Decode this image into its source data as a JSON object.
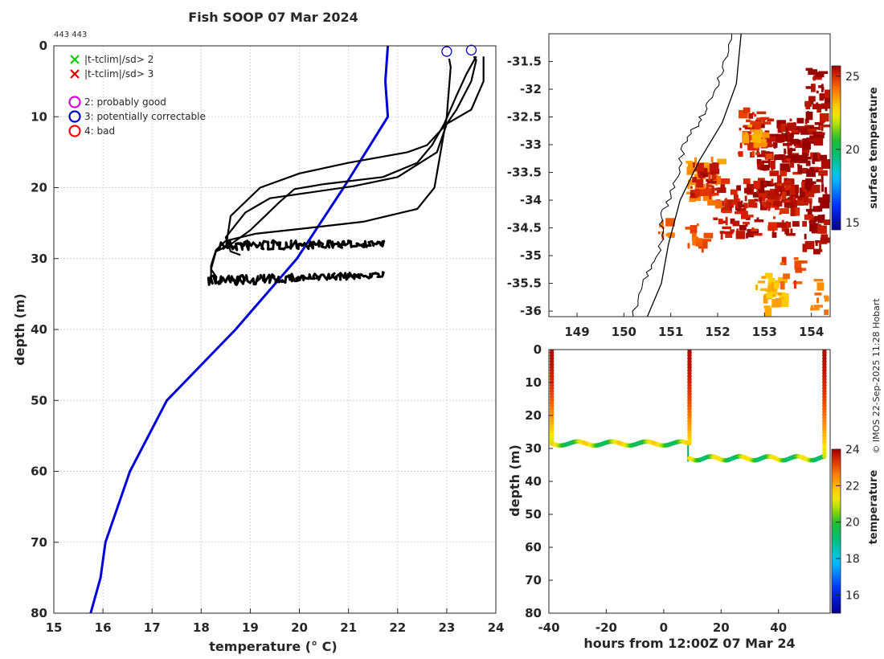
{
  "figure_title": "Fish SOOP 07 Mar 2024",
  "id_label": "443 443",
  "credit": "© IMOS 22-Sep-2025 11:28 Hobart",
  "colors": {
    "profile": "#000000",
    "climatology": "#0000dd",
    "flag_green": "#00cc00",
    "flag_red": "#dd0000",
    "flag_magenta": "#dd00dd",
    "flag_blue": "#0000cc",
    "flag_bad": "#ff0000",
    "grid": "#d6d6d6",
    "coast": "#000000"
  },
  "legend": [
    {
      "marker": "cross",
      "color": "flag_green",
      "label": "|t-tclim|/sd> 2"
    },
    {
      "marker": "cross",
      "color": "flag_red",
      "label": "|t-tclim|/sd> 3"
    },
    {
      "marker": "circle",
      "color": "flag_magenta",
      "label": "2: probably good"
    },
    {
      "marker": "circle",
      "color": "flag_blue",
      "label": "3: potentially correctable"
    },
    {
      "marker": "circle",
      "color": "flag_bad",
      "label": "4: bad"
    }
  ],
  "chart_data": [
    {
      "id": "profile",
      "type": "line",
      "xlabel": "temperature (° C)",
      "ylabel": "depth (m)",
      "xlim": [
        15,
        24
      ],
      "ylim": [
        0,
        80
      ],
      "y_reversed": true,
      "xticks": [
        "15",
        "16",
        "17",
        "18",
        "19",
        "20",
        "21",
        "22",
        "23",
        "24"
      ],
      "yticks": [
        "0",
        "10",
        "20",
        "30",
        "40",
        "50",
        "60",
        "70",
        "80"
      ],
      "grid": true,
      "series": [
        {
          "name": "climatology",
          "color": "climatology",
          "points": [
            [
              21.8,
              0
            ],
            [
              21.75,
              5
            ],
            [
              21.8,
              10
            ],
            [
              20.9,
              20
            ],
            [
              19.95,
              30
            ],
            [
              18.7,
              40
            ],
            [
              17.3,
              50
            ],
            [
              16.55,
              60
            ],
            [
              16.05,
              70
            ],
            [
              15.95,
              75
            ],
            [
              15.75,
              80
            ]
          ]
        },
        {
          "name": "profile 1",
          "color": "profile",
          "points": [
            [
              23.05,
              1.8
            ],
            [
              23.08,
              3
            ],
            [
              23.0,
              10
            ],
            [
              22.75,
              20
            ],
            [
              22.4,
              23
            ],
            [
              21.3,
              24.8
            ],
            [
              20.3,
              25.6
            ],
            [
              19.1,
              26.5
            ],
            [
              18.5,
              27.5
            ],
            [
              18.3,
              28.8
            ],
            [
              18.2,
              31
            ],
            [
              18.2,
              33
            ],
            [
              18.15,
              33.8
            ]
          ]
        },
        {
          "name": "profile 2",
          "color": "profile",
          "points": [
            [
              23.55,
              1.5
            ],
            [
              23.6,
              2
            ],
            [
              23.5,
              5
            ],
            [
              23.2,
              9
            ],
            [
              23.0,
              11
            ],
            [
              22.8,
              15
            ],
            [
              22.0,
              18.5
            ],
            [
              21.1,
              19.8
            ],
            [
              19.4,
              21.5
            ],
            [
              18.9,
              23.5
            ],
            [
              18.5,
              27
            ],
            [
              18.6,
              29
            ],
            [
              18.8,
              29.5
            ]
          ]
        },
        {
          "name": "profile 3",
          "color": "profile",
          "points": [
            [
              23.75,
              1.5
            ],
            [
              23.75,
              5
            ],
            [
              23.5,
              9
            ],
            [
              23.0,
              11
            ],
            [
              22.6,
              14
            ],
            [
              22.2,
              15
            ],
            [
              21.0,
              16.5
            ],
            [
              20.0,
              18
            ],
            [
              19.2,
              20
            ],
            [
              18.6,
              24
            ],
            [
              18.5,
              28.5
            ]
          ]
        },
        {
          "name": "profile 4",
          "color": "profile",
          "points": [
            [
              23.6,
              1.5
            ],
            [
              23.4,
              4
            ],
            [
              23.2,
              7
            ],
            [
              22.95,
              11
            ],
            [
              22.7,
              14
            ],
            [
              22.4,
              16.5
            ],
            [
              21.7,
              18.5
            ],
            [
              20.5,
              19.5
            ],
            [
              19.9,
              20.2
            ],
            [
              19.6,
              22
            ],
            [
              19.3,
              24
            ],
            [
              19.0,
              26
            ],
            [
              18.6,
              28
            ],
            [
              18.3,
              29
            ],
            [
              18.2,
              31.5
            ],
            [
              18.3,
              32.5
            ]
          ]
        },
        {
          "name": "band 28m",
          "color": "profile",
          "style": "band",
          "points": [
            [
              18.4,
              28.2
            ],
            [
              21.75,
              27.9
            ]
          ]
        },
        {
          "name": "band 33m",
          "color": "profile",
          "style": "band",
          "points": [
            [
              18.15,
              33.2
            ],
            [
              21.7,
              32.3
            ]
          ]
        }
      ],
      "markers": [
        {
          "type": "circle",
          "color": "flag_blue",
          "x": 23.0,
          "y": 0.8
        },
        {
          "type": "circle",
          "color": "flag_blue",
          "x": 23.5,
          "y": 0.6
        }
      ]
    },
    {
      "id": "map",
      "type": "heatmap",
      "xlim": [
        148.4,
        154.4
      ],
      "ylim": [
        -36.1,
        -31.0
      ],
      "xticks": [
        "149",
        "150",
        "151",
        "152",
        "153",
        "154"
      ],
      "yticks": [
        "-31.5",
        "-32",
        "-32.5",
        "-33",
        "-33.5",
        "-34",
        "-34.5",
        "-35",
        "-35.5",
        "-36"
      ],
      "colorbar": {
        "label": "surface temperature",
        "range": [
          14.5,
          25.7
        ],
        "ticks": [
          "15",
          "20",
          "25"
        ]
      },
      "coast": [
        [
          152.3,
          -31.0
        ],
        [
          152.1,
          -31.6
        ],
        [
          151.95,
          -32.0
        ],
        [
          151.75,
          -32.3
        ],
        [
          151.6,
          -32.6
        ],
        [
          151.25,
          -33.0
        ],
        [
          151.2,
          -33.5
        ],
        [
          151.0,
          -33.9
        ],
        [
          150.8,
          -34.3
        ],
        [
          150.85,
          -34.7
        ],
        [
          150.65,
          -35.1
        ],
        [
          150.4,
          -35.5
        ],
        [
          150.2,
          -36.1
        ]
      ],
      "track": [
        [
          152.5,
          -31.0
        ],
        [
          152.4,
          -31.9
        ],
        [
          152.1,
          -32.6
        ],
        [
          151.6,
          -33.3
        ],
        [
          151.2,
          -34.0
        ],
        [
          150.95,
          -34.8
        ],
        [
          150.8,
          -35.5
        ],
        [
          150.5,
          -36.1
        ]
      ],
      "patches": [
        {
          "lon": [
            152.8,
            153.9
          ],
          "lat": [
            -34.0,
            -32.5
          ],
          "value": 25.5,
          "count": 150
        },
        {
          "lon": [
            153.8,
            154.3
          ],
          "lat": [
            -35.0,
            -31.6
          ],
          "value": 25.6,
          "count": 110
        },
        {
          "lon": [
            151.9,
            153.6
          ],
          "lat": [
            -34.6,
            -33.6
          ],
          "value": 25.3,
          "count": 120
        },
        {
          "lon": [
            151.3,
            152.0
          ],
          "lat": [
            -34.0,
            -33.2
          ],
          "value": 23.8,
          "count": 40
        },
        {
          "lon": [
            151.4,
            151.9
          ],
          "lat": [
            -33.9,
            -33.3
          ],
          "value": 25.2,
          "count": 40
        },
        {
          "lon": [
            152.4,
            153.1
          ],
          "lat": [
            -33.2,
            -32.3
          ],
          "value": 25.0,
          "count": 40
        },
        {
          "lon": [
            152.5,
            153.0
          ],
          "lat": [
            -33.0,
            -32.6
          ],
          "value": 23.5,
          "count": 16
        },
        {
          "lon": [
            150.7,
            150.95
          ],
          "lat": [
            -34.6,
            -34.2
          ],
          "value": 24.2,
          "count": 8
        },
        {
          "lon": [
            151.3,
            151.7
          ],
          "lat": [
            -34.8,
            -34.4
          ],
          "value": 24.4,
          "count": 12
        },
        {
          "lon": [
            152.8,
            153.4
          ],
          "lat": [
            -36.0,
            -35.3
          ],
          "value": 23.2,
          "count": 40
        },
        {
          "lon": [
            153.3,
            153.8
          ],
          "lat": [
            -35.5,
            -35.0
          ],
          "value": 24.6,
          "count": 12
        },
        {
          "lon": [
            153.9,
            154.3
          ],
          "lat": [
            -36.0,
            -35.4
          ],
          "value": 24.0,
          "count": 10
        }
      ]
    },
    {
      "id": "time-depth",
      "type": "scatter",
      "xlabel": "hours from 12:00Z 07 Mar 24",
      "ylabel": "depth (m)",
      "xlim": [
        -40,
        58
      ],
      "ylim": [
        0,
        80
      ],
      "y_reversed": true,
      "xticks": [
        "-40",
        "-20",
        "0",
        "20",
        "40"
      ],
      "yticks": [
        "0",
        "10",
        "20",
        "30",
        "40",
        "50",
        "60",
        "70",
        "80"
      ],
      "colorbar": {
        "label": "temperature",
        "range": [
          15,
          24
        ],
        "ticks": [
          "16",
          "18",
          "20",
          "22",
          "24"
        ]
      },
      "casts": [
        {
          "hour": -39,
          "temp_top": 23.8,
          "temp_bottom": 21.0,
          "bottom": 28.5
        },
        {
          "hour": 9,
          "temp_top": 23.8,
          "temp_bottom": 21.5,
          "bottom": 28.5
        },
        {
          "hour": 56,
          "temp_top": 23.8,
          "temp_bottom": 21.0,
          "bottom": 32.5
        }
      ],
      "tows": [
        {
          "hours": [
            -39,
            9
          ],
          "mean_depth": 28.5,
          "amplitude": 0.6,
          "period": 12,
          "temp_min": 19.3,
          "temp_max": 21.8
        },
        {
          "hours": [
            9,
            56
          ],
          "mean_depth": 33.0,
          "amplitude": 0.6,
          "period": 10,
          "temp_min": 19.0,
          "temp_max": 21.6
        }
      ],
      "jumps": [
        {
          "hour": 8.5,
          "from": 28.0,
          "to": 34.0
        }
      ]
    }
  ]
}
